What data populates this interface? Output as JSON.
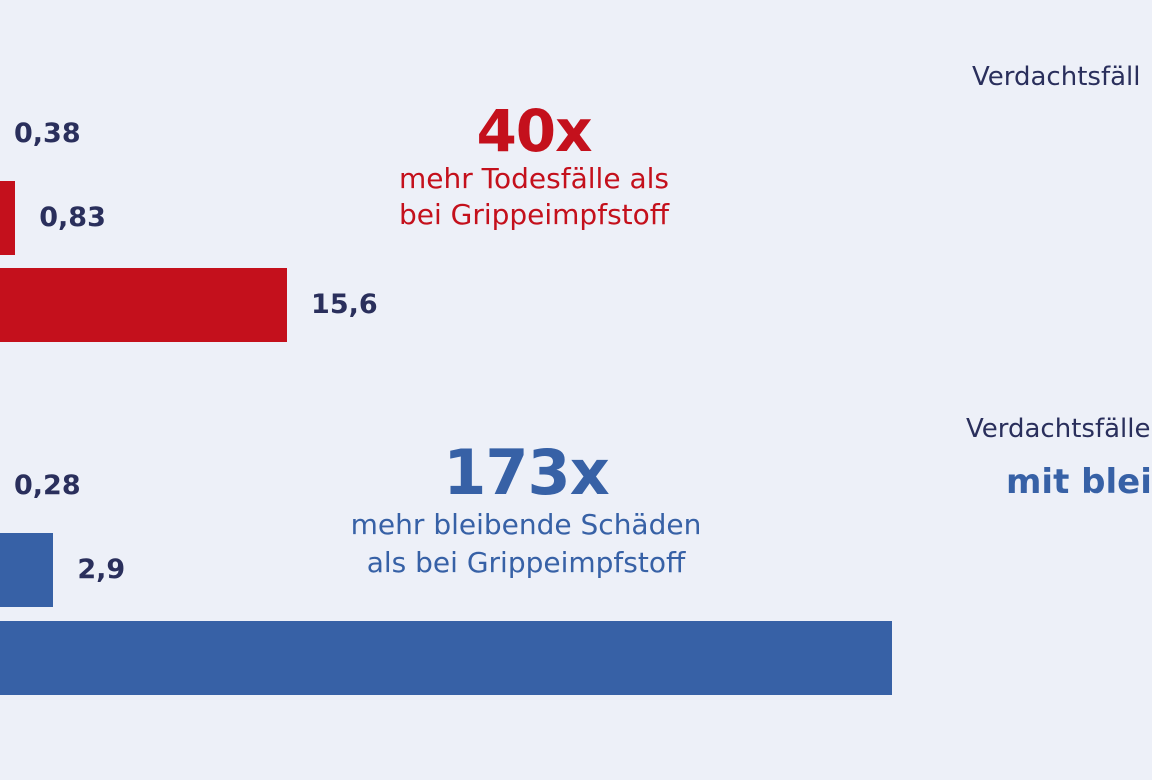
{
  "chart_data": [
    {
      "type": "bar",
      "orientation": "horizontal",
      "color": "#c4101c",
      "values": [
        0.38,
        0.83,
        15.6
      ],
      "value_labels": [
        "0,38",
        "0,83",
        "15,6"
      ],
      "callout": {
        "multiplier": "40x",
        "lines": [
          "mehr Todesfälle als",
          "bei Grippeimpfstoff"
        ]
      },
      "legend_partial": [
        "Verdachtsfäll"
      ]
    },
    {
      "type": "bar",
      "orientation": "horizontal",
      "color": "#3761a6",
      "values": [
        0.28,
        2.9,
        48.5
      ],
      "value_labels": [
        "0,28",
        "2,9",
        ""
      ],
      "callout": {
        "multiplier": "173x",
        "lines": [
          "mehr bleibende Schäden",
          "als bei Grippeimpfstoff"
        ]
      },
      "legend_partial": [
        "Verdachtsfälle",
        "mit blei"
      ]
    }
  ],
  "colors": {
    "background": "#edf0f8",
    "red": "#c4101c",
    "blue": "#3761a6",
    "label": "#2a2f5c"
  }
}
